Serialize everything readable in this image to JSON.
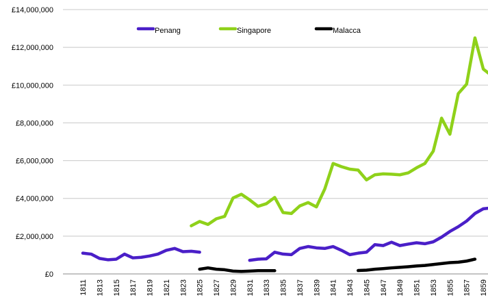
{
  "chart_data": {
    "type": "line",
    "categories": [
      "1811",
      null,
      "1813",
      null,
      "1815",
      null,
      "1817",
      null,
      "1819",
      null,
      "1821",
      null,
      "1823",
      null,
      "1825",
      null,
      "1827",
      null,
      "1829",
      null,
      "1831",
      null,
      "1833",
      null,
      "1835",
      null,
      "1837",
      null,
      "1839",
      null,
      "1841",
      null,
      "1843",
      null,
      "1845",
      null,
      "1847",
      null,
      "1849",
      null,
      "1851",
      null,
      "1853",
      null,
      "1855",
      null,
      "1857",
      null,
      "1859",
      null
    ],
    "series": [
      {
        "name": "Penang",
        "color": "#4a1fc8",
        "values": [
          1100000,
          1050000,
          820000,
          750000,
          780000,
          1050000,
          850000,
          880000,
          950000,
          1050000,
          1250000,
          1350000,
          1180000,
          1200000,
          1150000,
          null,
          null,
          null,
          null,
          null,
          720000,
          780000,
          800000,
          1150000,
          1050000,
          1020000,
          1350000,
          1450000,
          1380000,
          1350000,
          1450000,
          1250000,
          1020000,
          1100000,
          1150000,
          1550000,
          1500000,
          1680000,
          1500000,
          1580000,
          1650000,
          1600000,
          1700000,
          1950000,
          2250000,
          2500000,
          2800000,
          3200000,
          3450000,
          3500000
        ]
      },
      {
        "name": "Singapore",
        "color": "#8fd11a",
        "values": [
          null,
          null,
          null,
          null,
          null,
          null,
          null,
          null,
          null,
          null,
          null,
          null,
          null,
          2550000,
          2780000,
          2620000,
          2920000,
          3050000,
          4020000,
          4220000,
          3920000,
          3580000,
          3720000,
          4050000,
          3250000,
          3200000,
          3600000,
          3780000,
          3550000,
          4500000,
          5850000,
          5680000,
          5550000,
          5500000,
          4980000,
          5250000,
          5300000,
          5280000,
          5250000,
          5350000,
          5620000,
          5850000,
          6500000,
          8250000,
          7400000,
          9550000,
          10050000,
          12500000,
          10850000,
          10500000
        ]
      },
      {
        "name": "Malacca",
        "color": "#000000",
        "values": [
          null,
          null,
          null,
          null,
          null,
          null,
          null,
          null,
          null,
          null,
          null,
          null,
          null,
          null,
          250000,
          320000,
          250000,
          220000,
          150000,
          130000,
          150000,
          170000,
          170000,
          170000,
          null,
          null,
          null,
          null,
          null,
          null,
          null,
          null,
          null,
          180000,
          200000,
          250000,
          280000,
          320000,
          350000,
          380000,
          420000,
          450000,
          500000,
          550000,
          600000,
          620000,
          680000,
          780000,
          null,
          null
        ]
      }
    ],
    "ylim": [
      0,
      14000000
    ],
    "yticks": [
      {
        "value": 0,
        "label": "£0"
      },
      {
        "value": 2000000,
        "label": "£2,000,000"
      },
      {
        "value": 4000000,
        "label": "£4,000,000"
      },
      {
        "value": 6000000,
        "label": "£6,000,000"
      },
      {
        "value": 8000000,
        "label": "£8,000,000"
      },
      {
        "value": 10000000,
        "label": "£10,000,000"
      },
      {
        "value": 12000000,
        "label": "£12,000,000"
      },
      {
        "value": 14000000,
        "label": "£14,000,000"
      }
    ],
    "grid": true,
    "legend": "top"
  }
}
